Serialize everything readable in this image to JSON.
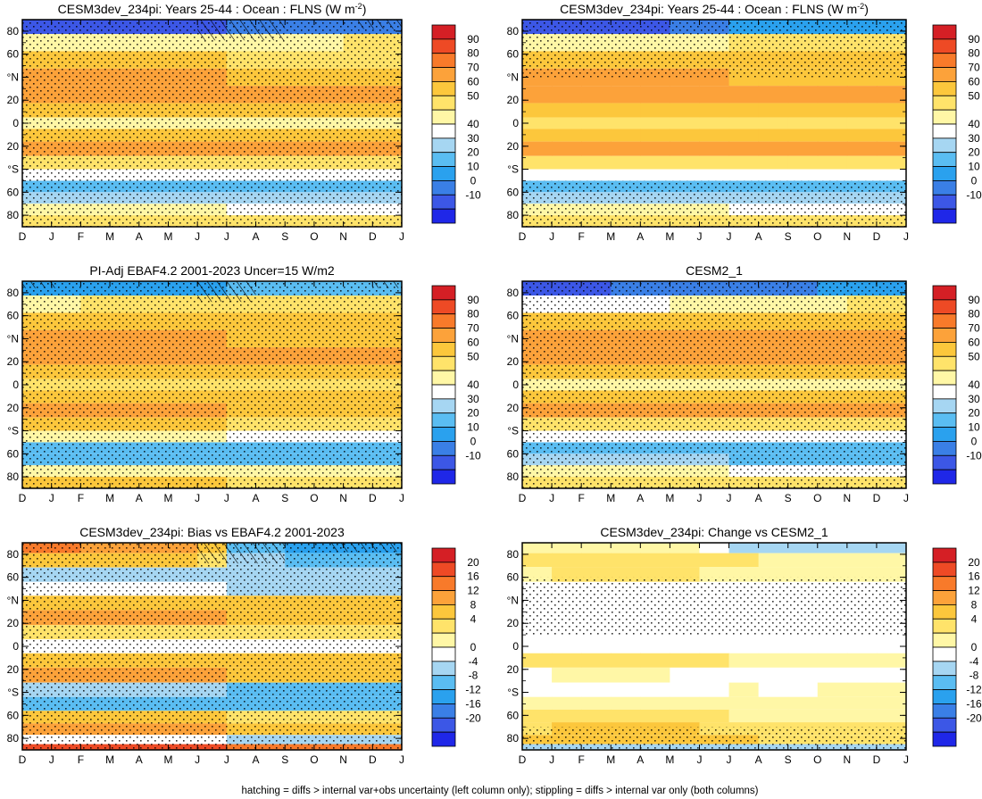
{
  "figure_caption": "hatching = diffs > internal var+obs uncertainty (left column only); stippling = diffs > internal var only (both columns)",
  "chart_data": [
    {
      "type": "heatmap",
      "title": "CESM3dev_234pi: Years 25-44 : Ocean : FLNS (W m",
      "title_sup": "-2",
      "title_close": ")",
      "x_ticks": [
        "D",
        "J",
        "F",
        "M",
        "A",
        "M",
        "J",
        "J",
        "A",
        "S",
        "O",
        "N",
        "D",
        "J"
      ],
      "y_ticks": [
        "80",
        "60",
        "°N",
        "20",
        "0",
        "20",
        "°S",
        "60",
        "80"
      ],
      "ylim": [
        -90,
        90
      ],
      "colorbar": {
        "ticks": [
          "90",
          "80",
          "70",
          "60",
          "50",
          "40",
          "30",
          "20",
          "10",
          "0",
          "-10"
        ],
        "range": [
          -10,
          90
        ]
      },
      "rows": [
        {
          "lat": 85,
          "v": [
            -6,
            10
          ]
        },
        {
          "lat": 70,
          "v": [
            40,
            46
          ]
        },
        {
          "lat": 55,
          "v": [
            50,
            50
          ]
        },
        {
          "lat": 40,
          "v": [
            60,
            60
          ]
        },
        {
          "lat": 25,
          "v": [
            64,
            64
          ]
        },
        {
          "lat": 10,
          "v": [
            52,
            52
          ]
        },
        {
          "lat": 0,
          "v": [
            44,
            44
          ]
        },
        {
          "lat": -10,
          "v": [
            58,
            58
          ]
        },
        {
          "lat": -22,
          "v": [
            62,
            62
          ]
        },
        {
          "lat": -35,
          "v": [
            48,
            48
          ]
        },
        {
          "lat": -45,
          "v": [
            38,
            38
          ]
        },
        {
          "lat": -55,
          "v": [
            22,
            22
          ]
        },
        {
          "lat": -65,
          "v": [
            32,
            32
          ]
        },
        {
          "lat": -75,
          "v": [
            40,
            40
          ]
        },
        {
          "lat": -85,
          "v": [
            46,
            46
          ]
        }
      ],
      "stipple_lat": [
        [
          -90,
          90
        ]
      ],
      "hatch": [
        {
          "month_from": 6,
          "month_to": 9,
          "lat_from": 72,
          "lat_to": 90
        },
        {
          "month_from": 11.5,
          "month_to": 13,
          "lat_from": 82,
          "lat_to": 90
        }
      ]
    },
    {
      "type": "heatmap",
      "title": "CESM3dev_234pi: Years 25-44 : Ocean : FLNS (W m",
      "title_sup": "-2",
      "title_close": ")",
      "x_ticks": [
        "D",
        "J",
        "F",
        "M",
        "A",
        "M",
        "J",
        "J",
        "A",
        "S",
        "O",
        "N",
        "D",
        "J"
      ],
      "y_ticks": [
        "80",
        "60",
        "°N",
        "20",
        "0",
        "20",
        "°S",
        "60",
        "80"
      ],
      "ylim": [
        -90,
        90
      ],
      "colorbar": {
        "ticks": [
          "90",
          "80",
          "70",
          "60",
          "50",
          "40",
          "30",
          "20",
          "10",
          "0",
          "-10"
        ],
        "range": [
          -10,
          90
        ]
      },
      "rows": [
        {
          "lat": 85,
          "v": [
            -4,
            14
          ]
        },
        {
          "lat": 70,
          "v": [
            40,
            48
          ]
        },
        {
          "lat": 55,
          "v": [
            52,
            52
          ]
        },
        {
          "lat": 40,
          "v": [
            60,
            60
          ]
        },
        {
          "lat": 25,
          "v": [
            66,
            66
          ]
        },
        {
          "lat": 10,
          "v": [
            52,
            52
          ]
        },
        {
          "lat": 0,
          "v": [
            46,
            46
          ]
        },
        {
          "lat": -10,
          "v": [
            56,
            56
          ]
        },
        {
          "lat": -22,
          "v": [
            66,
            66
          ]
        },
        {
          "lat": -35,
          "v": [
            48,
            48
          ]
        },
        {
          "lat": -45,
          "v": [
            36,
            36
          ]
        },
        {
          "lat": -55,
          "v": [
            24,
            24
          ]
        },
        {
          "lat": -65,
          "v": [
            32,
            32
          ]
        },
        {
          "lat": -75,
          "v": [
            40,
            40
          ]
        },
        {
          "lat": -85,
          "v": [
            46,
            46
          ]
        }
      ],
      "stipple_lat": [
        [
          40,
          90
        ],
        [
          -90,
          -50
        ]
      ],
      "hatch": []
    },
    {
      "type": "heatmap",
      "title": "PI-Adj EBAF4.2 2001-2023 Uncer=15 W/m2",
      "x_ticks": [
        "D",
        "J",
        "F",
        "M",
        "A",
        "M",
        "J",
        "J",
        "A",
        "S",
        "O",
        "N",
        "D",
        "J"
      ],
      "y_ticks": [
        "80",
        "60",
        "°N",
        "20",
        "0",
        "20",
        "°S",
        "60",
        "80"
      ],
      "ylim": [
        -90,
        90
      ],
      "colorbar": {
        "ticks": [
          "90",
          "80",
          "70",
          "60",
          "50",
          "40",
          "30",
          "20",
          "10",
          "0",
          "-10"
        ],
        "range": [
          -10,
          90
        ]
      },
      "rows": [
        {
          "lat": 85,
          "v": [
            12,
            30
          ]
        },
        {
          "lat": 70,
          "v": [
            44,
            50
          ]
        },
        {
          "lat": 55,
          "v": [
            52,
            52
          ]
        },
        {
          "lat": 40,
          "v": [
            60,
            60
          ]
        },
        {
          "lat": 25,
          "v": [
            62,
            62
          ]
        },
        {
          "lat": 10,
          "v": [
            54,
            54
          ]
        },
        {
          "lat": 0,
          "v": [
            48,
            48
          ]
        },
        {
          "lat": -10,
          "v": [
            56,
            56
          ]
        },
        {
          "lat": -22,
          "v": [
            60,
            60
          ]
        },
        {
          "lat": -35,
          "v": [
            50,
            50
          ]
        },
        {
          "lat": -45,
          "v": [
            40,
            40
          ]
        },
        {
          "lat": -55,
          "v": [
            24,
            24
          ]
        },
        {
          "lat": -65,
          "v": [
            28,
            28
          ]
        },
        {
          "lat": -75,
          "v": [
            44,
            44
          ]
        },
        {
          "lat": -85,
          "v": [
            50,
            50
          ]
        }
      ],
      "stipple_lat": [
        [
          -90,
          90
        ]
      ],
      "hatch": [
        {
          "month_from": 6,
          "month_to": 8,
          "lat_from": 72,
          "lat_to": 90
        },
        {
          "month_from": 0,
          "month_to": 1.2,
          "lat_from": 84,
          "lat_to": 90
        },
        {
          "month_from": 12,
          "month_to": 13,
          "lat_from": 84,
          "lat_to": 90
        }
      ]
    },
    {
      "type": "heatmap",
      "title": "CESM2_1",
      "x_ticks": [
        "D",
        "J",
        "F",
        "M",
        "A",
        "M",
        "J",
        "J",
        "A",
        "S",
        "O",
        "N",
        "D",
        "J"
      ],
      "y_ticks": [
        "80",
        "60",
        "°N",
        "20",
        "0",
        "20",
        "°S",
        "60",
        "80"
      ],
      "ylim": [
        -90,
        90
      ],
      "colorbar": {
        "ticks": [
          "90",
          "80",
          "70",
          "60",
          "50",
          "40",
          "30",
          "20",
          "10",
          "0",
          "-10"
        ],
        "range": [
          -10,
          90
        ]
      },
      "rows": [
        {
          "lat": 85,
          "v": [
            -2,
            12
          ]
        },
        {
          "lat": 70,
          "v": [
            38,
            46
          ]
        },
        {
          "lat": 55,
          "v": [
            52,
            52
          ]
        },
        {
          "lat": 40,
          "v": [
            62,
            62
          ]
        },
        {
          "lat": 25,
          "v": [
            68,
            68
          ]
        },
        {
          "lat": 10,
          "v": [
            54,
            54
          ]
        },
        {
          "lat": 0,
          "v": [
            44,
            44
          ]
        },
        {
          "lat": -10,
          "v": [
            58,
            58
          ]
        },
        {
          "lat": -22,
          "v": [
            64,
            64
          ]
        },
        {
          "lat": -35,
          "v": [
            48,
            48
          ]
        },
        {
          "lat": -45,
          "v": [
            36,
            36
          ]
        },
        {
          "lat": -55,
          "v": [
            24,
            24
          ]
        },
        {
          "lat": -65,
          "v": [
            30,
            30
          ]
        },
        {
          "lat": -75,
          "v": [
            40,
            40
          ]
        },
        {
          "lat": -85,
          "v": [
            46,
            46
          ]
        }
      ],
      "stipple_lat": [
        [
          -90,
          90
        ]
      ],
      "hatch": []
    },
    {
      "type": "heatmap",
      "title": "CESM3dev_234pi: Bias vs EBAF4.2 2001-2023",
      "x_ticks": [
        "D",
        "J",
        "F",
        "M",
        "A",
        "M",
        "J",
        "J",
        "A",
        "S",
        "O",
        "N",
        "D",
        "J"
      ],
      "y_ticks": [
        "80",
        "60",
        "°N",
        "20",
        "0",
        "20",
        "°S",
        "60",
        "80"
      ],
      "ylim": [
        -90,
        90
      ],
      "colorbar": {
        "ticks": [
          "20",
          "16",
          "12",
          "8",
          "4",
          "0",
          "-4",
          "-8",
          "-12",
          "-16",
          "-20"
        ],
        "range": [
          -22,
          22
        ]
      },
      "rows": [
        {
          "lat": 87,
          "v": [
            14,
            -16
          ]
        },
        {
          "lat": 75,
          "v": [
            8,
            -10
          ]
        },
        {
          "lat": 62,
          "v": [
            -6,
            -6
          ]
        },
        {
          "lat": 50,
          "v": [
            -4,
            -4
          ]
        },
        {
          "lat": 38,
          "v": [
            5,
            5
          ]
        },
        {
          "lat": 25,
          "v": [
            8,
            8
          ]
        },
        {
          "lat": 12,
          "v": [
            2,
            2
          ]
        },
        {
          "lat": 0,
          "v": [
            -2,
            -2
          ]
        },
        {
          "lat": -12,
          "v": [
            6,
            6
          ]
        },
        {
          "lat": -25,
          "v": [
            8,
            8
          ]
        },
        {
          "lat": -38,
          "v": [
            -8,
            -8
          ]
        },
        {
          "lat": -50,
          "v": [
            -10,
            -10
          ]
        },
        {
          "lat": -62,
          "v": [
            4,
            4
          ]
        },
        {
          "lat": -72,
          "v": [
            8,
            8
          ]
        },
        {
          "lat": -82,
          "v": [
            -4,
            -4
          ]
        },
        {
          "lat": -88,
          "v": [
            16,
            16
          ]
        }
      ],
      "stipple_lat": [
        [
          -90,
          90
        ]
      ],
      "hatch": [
        {
          "month_from": 6,
          "month_to": 9,
          "lat_from": 72,
          "lat_to": 90
        },
        {
          "month_from": 10.5,
          "month_to": 13,
          "lat_from": 82,
          "lat_to": 90
        }
      ]
    },
    {
      "type": "heatmap",
      "title": "CESM3dev_234pi: Change vs CESM2_1",
      "x_ticks": [
        "D",
        "J",
        "F",
        "M",
        "A",
        "M",
        "J",
        "J",
        "A",
        "S",
        "O",
        "N",
        "D",
        "J"
      ],
      "y_ticks": [
        "80",
        "60",
        "°N",
        "20",
        "0",
        "20",
        "°S",
        "60",
        "80"
      ],
      "ylim": [
        -90,
        90
      ],
      "colorbar": {
        "ticks": [
          "20",
          "16",
          "12",
          "8",
          "4",
          "0",
          "-4",
          "-8",
          "-12",
          "-16",
          "-20"
        ],
        "range": [
          -22,
          22
        ]
      },
      "rows": [
        {
          "lat": 86,
          "v": [
            0,
            -6
          ]
        },
        {
          "lat": 76,
          "v": [
            3,
            1
          ]
        },
        {
          "lat": 62,
          "v": [
            1,
            0
          ]
        },
        {
          "lat": 50,
          "v": [
            -3,
            -1
          ]
        },
        {
          "lat": 38,
          "v": [
            -4,
            -3
          ]
        },
        {
          "lat": 25,
          "v": [
            -4,
            -3
          ]
        },
        {
          "lat": 12,
          "v": [
            -2,
            -1
          ]
        },
        {
          "lat": 0,
          "v": [
            -3,
            -1
          ]
        },
        {
          "lat": -12,
          "v": [
            2,
            0
          ]
        },
        {
          "lat": -25,
          "v": [
            -1,
            -3
          ]
        },
        {
          "lat": -38,
          "v": [
            -4,
            0
          ]
        },
        {
          "lat": -50,
          "v": [
            0,
            0
          ]
        },
        {
          "lat": -60,
          "v": [
            1,
            1
          ]
        },
        {
          "lat": -72,
          "v": [
            4,
            3
          ]
        },
        {
          "lat": -82,
          "v": [
            5,
            4
          ]
        },
        {
          "lat": -88,
          "v": [
            -6,
            -6
          ]
        }
      ],
      "stipple_lat": [
        [
          -90,
          -70
        ],
        [
          10,
          60
        ]
      ],
      "hatch": []
    }
  ]
}
